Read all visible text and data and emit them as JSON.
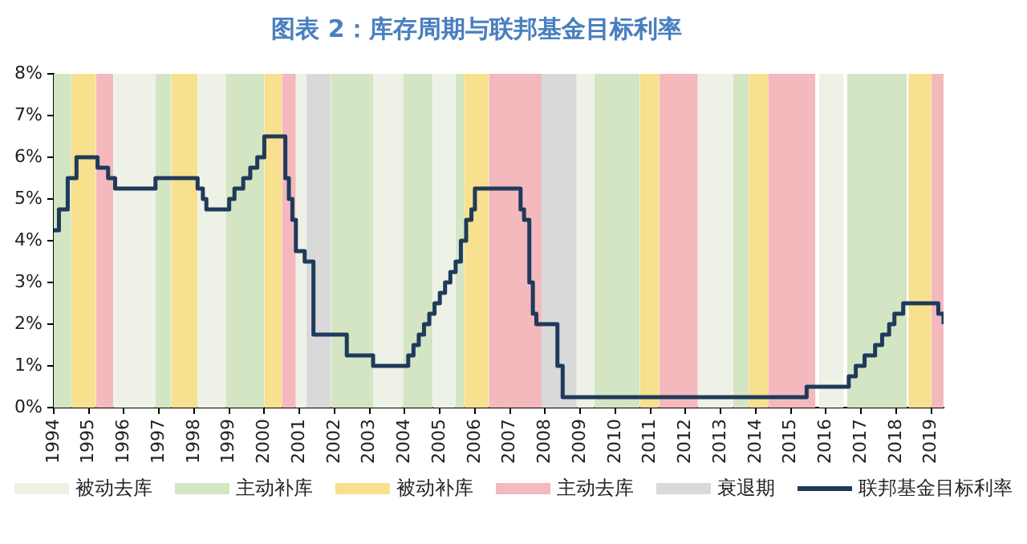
{
  "chart_data": {
    "type": "line",
    "title": "图表 2：库存周期与联邦基金目标利率",
    "legend": "bottom",
    "xlim": [
      1994,
      2019.35
    ],
    "xticks": [
      1994,
      1995,
      1996,
      1997,
      1998,
      1999,
      2000,
      2001,
      2002,
      2003,
      2004,
      2005,
      2006,
      2007,
      2008,
      2009,
      2010,
      2011,
      2012,
      2013,
      2014,
      2015,
      2016,
      2017,
      2018,
      2019
    ],
    "ylim": [
      0,
      8
    ],
    "yticks": [
      {
        "value": 0,
        "label": "0%"
      },
      {
        "value": 1,
        "label": "1%"
      },
      {
        "value": 2,
        "label": "2%"
      },
      {
        "value": 3,
        "label": "3%"
      },
      {
        "value": 4,
        "label": "4%"
      },
      {
        "value": 5,
        "label": "5%"
      },
      {
        "value": 6,
        "label": "6%"
      },
      {
        "value": 7,
        "label": "7%"
      },
      {
        "value": 8,
        "label": "8%"
      }
    ],
    "series": [
      {
        "name": "联邦基金目标利率",
        "type": "step",
        "color": "#1f3a5a",
        "x": [
          1994,
          1994.15,
          1994.4,
          1994.65,
          1995.25,
          1995.55,
          1995.75,
          1996.9,
          1998.1,
          1998.25,
          1998.35,
          1999,
          1999.15,
          1999.4,
          1999.6,
          1999.8,
          2000,
          2000.6,
          2000.7,
          2000.8,
          2000.9,
          2001.15,
          2001.4,
          2002.35,
          2003,
          2003.1,
          2003.95,
          2004.1,
          2004.25,
          2004.4,
          2004.55,
          2004.7,
          2004.85,
          2005,
          2005.15,
          2005.3,
          2005.45,
          2005.6,
          2005.75,
          2005.9,
          2006,
          2007.2,
          2007.3,
          2007.4,
          2007.55,
          2007.65,
          2007.75,
          2008.3,
          2008.35,
          2008.5,
          2015.45,
          2016.5,
          2016.65,
          2016.85,
          2017.1,
          2017.4,
          2017.6,
          2017.8,
          2017.95,
          2018.2,
          2019.1,
          2019.2,
          2019.35
        ],
        "values": [
          4.25,
          4.75,
          5.5,
          6,
          5.75,
          5.5,
          5.25,
          5.5,
          5.25,
          5,
          4.75,
          5,
          5.25,
          5.5,
          5.75,
          6,
          6.5,
          5.5,
          5,
          4.5,
          3.75,
          3.5,
          1.75,
          1.25,
          1.25,
          1,
          1,
          1.25,
          1.5,
          1.75,
          2,
          2.25,
          2.5,
          2.75,
          3,
          3.25,
          3.5,
          4,
          4.5,
          4.75,
          5.25,
          5.25,
          4.75,
          4.5,
          3,
          2.25,
          2,
          2,
          1,
          0.25,
          0.5,
          0.5,
          0.75,
          1,
          1.25,
          1.5,
          1.75,
          2,
          2.25,
          2.5,
          2.5,
          2.25,
          2
        ]
      }
    ],
    "bands": [
      {
        "axis": "x",
        "from": 1995.7,
        "to": 1996.9,
        "label": "被动去库",
        "color": "#eef1e6"
      },
      {
        "axis": "x",
        "from": 1994,
        "to": 1994.5,
        "label": "主动补库",
        "color": "#d3e5c3"
      },
      {
        "axis": "x",
        "from": 1994.5,
        "to": 1995.2,
        "label": "被动补库",
        "color": "#f7e08e"
      },
      {
        "axis": "x",
        "from": 1995.2,
        "to": 1995.7,
        "label": "主动去库",
        "color": "#f3b9bd"
      },
      {
        "axis": "x",
        "from": 2001.2,
        "to": 2001.9,
        "label": "衰退期",
        "color": "#d9d9d9"
      },
      {
        "axis": "x",
        "from": 2007.9,
        "to": 2008.9,
        "color": "#d9d9d9"
      },
      {
        "axis": "x",
        "from": 1996.9,
        "to": 1997.35,
        "color": "#d3e5c3"
      },
      {
        "axis": "x",
        "from": 1997.35,
        "to": 1998.1,
        "color": "#f7e08e"
      },
      {
        "axis": "x",
        "from": 1998.1,
        "to": 1998.9,
        "color": "#eef1e6"
      },
      {
        "axis": "x",
        "from": 1998.9,
        "to": 2000,
        "color": "#d3e5c3"
      },
      {
        "axis": "x",
        "from": 2000,
        "to": 2000.5,
        "color": "#f7e08e"
      },
      {
        "axis": "x",
        "from": 2000.5,
        "to": 2000.9,
        "color": "#f3b9bd"
      },
      {
        "axis": "x",
        "from": 2000.9,
        "to": 2001.2,
        "color": "#eef1e6"
      },
      {
        "axis": "x",
        "from": 2001.9,
        "to": 2003.1,
        "color": "#d3e5c3"
      },
      {
        "axis": "x",
        "from": 2003.1,
        "to": 2003.95,
        "color": "#eef1e6"
      },
      {
        "axis": "x",
        "from": 2003.95,
        "to": 2004.8,
        "color": "#d3e5c3"
      },
      {
        "axis": "x",
        "from": 2004.8,
        "to": 2005.45,
        "color": "#eef1e6"
      },
      {
        "axis": "x",
        "from": 2005.45,
        "to": 2005.7,
        "color": "#d3e5c3"
      },
      {
        "axis": "x",
        "from": 2005.7,
        "to": 2006.4,
        "color": "#f7e08e"
      },
      {
        "axis": "x",
        "from": 2006.4,
        "to": 2007.9,
        "color": "#f3b9bd"
      },
      {
        "axis": "x",
        "from": 2008.9,
        "to": 2009.4,
        "color": "#eef1e6"
      },
      {
        "axis": "x",
        "from": 2009.4,
        "to": 2010.7,
        "color": "#d3e5c3"
      },
      {
        "axis": "x",
        "from": 2010.7,
        "to": 2011.25,
        "color": "#f7e08e"
      },
      {
        "axis": "x",
        "from": 2011.25,
        "to": 2012.35,
        "color": "#f3b9bd"
      },
      {
        "axis": "x",
        "from": 2012.35,
        "to": 2013.35,
        "color": "#eef1e6"
      },
      {
        "axis": "x",
        "from": 2013.35,
        "to": 2013.8,
        "color": "#d3e5c3"
      },
      {
        "axis": "x",
        "from": 2013.8,
        "to": 2014.35,
        "color": "#f7e08e"
      },
      {
        "axis": "x",
        "from": 2014.35,
        "to": 2015.7,
        "color": "#f3b9bd"
      },
      {
        "axis": "x",
        "from": 2015.8,
        "to": 2016.5,
        "color": "#eef1e6"
      },
      {
        "axis": "x",
        "from": 2016.6,
        "to": 2018.3,
        "color": "#d3e5c3"
      },
      {
        "axis": "x",
        "from": 2018.35,
        "to": 2019,
        "color": "#f7e08e"
      },
      {
        "axis": "x",
        "from": 2019,
        "to": 2019.35,
        "color": "#f3b9bd"
      }
    ]
  }
}
